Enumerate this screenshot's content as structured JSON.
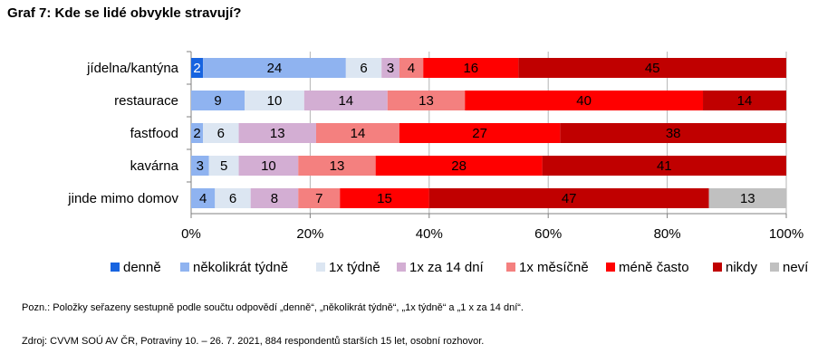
{
  "title": "Graf 7: Kde se lidé obvykle stravují?",
  "note": "Pozn.: Položky seřazeny sestupně podle součtu odpovědí „denně“, „několikrát týdně“, „1x týdně“ a „1 x za 14 dní“.",
  "source": "Zdroj: CVVM SOÚ AV ČR, Potraviny 10. – 26. 7. 2021, 884 respondentů starších 15 let, osobní rozhovor.",
  "chart_data": {
    "type": "bar",
    "orientation": "horizontal",
    "stacked": "percent",
    "categories": [
      "jídelna/kantýna",
      "restaurace",
      "fastfood",
      "kavárna",
      "jinde mimo domov"
    ],
    "xlim": [
      0,
      100
    ],
    "x_ticks": [
      "0%",
      "20%",
      "40%",
      "60%",
      "80%",
      "100%"
    ],
    "legend_position": "bottom",
    "grid": "vertical",
    "series": [
      {
        "name": "denně",
        "color": "#1764e0",
        "label_color": "#ffffff",
        "values": [
          2,
          0,
          0,
          0,
          0
        ]
      },
      {
        "name": "několikrát týdně",
        "color": "#8fb3f0",
        "label_color": "#000000",
        "values": [
          24,
          9,
          2,
          3,
          4
        ]
      },
      {
        "name": "1x týdně",
        "color": "#dce6f2",
        "label_color": "#000000",
        "values": [
          6,
          10,
          6,
          5,
          6
        ]
      },
      {
        "name": "1x za 14 dní",
        "color": "#d3aed3",
        "label_color": "#000000",
        "values": [
          3,
          14,
          13,
          10,
          8
        ]
      },
      {
        "name": "1x měsíčně",
        "color": "#f4807f",
        "label_color": "#000000",
        "values": [
          4,
          13,
          14,
          13,
          7
        ]
      },
      {
        "name": "méně často",
        "color": "#ff0000",
        "label_color": "#000000",
        "values": [
          16,
          40,
          27,
          28,
          15
        ]
      },
      {
        "name": "nikdy",
        "color": "#c00000",
        "label_color": "#000000",
        "values": [
          45,
          14,
          38,
          41,
          47
        ]
      },
      {
        "name": "neví",
        "color": "#c0c0c0",
        "label_color": "#000000",
        "values": [
          0,
          0,
          0,
          0,
          13
        ]
      }
    ]
  }
}
